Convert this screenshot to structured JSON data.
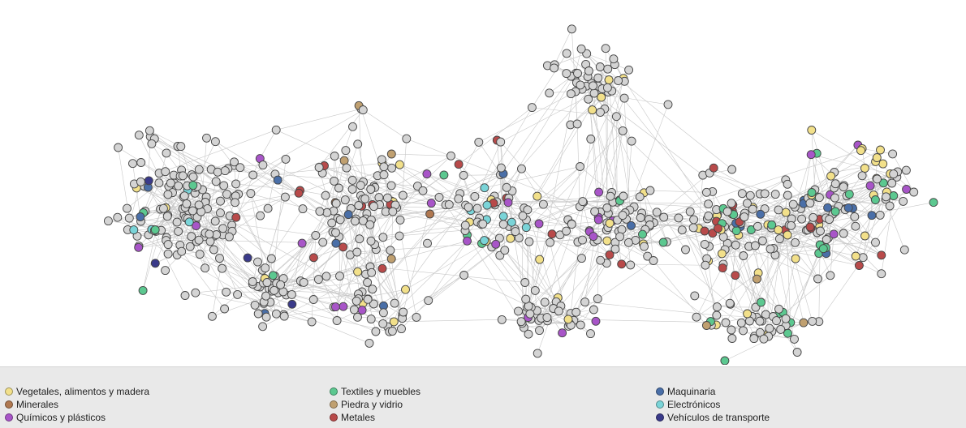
{
  "legend": {
    "items": [
      {
        "label": "Vegetales, alimentos y madera",
        "color": "#f2e08a"
      },
      {
        "label": "Minerales",
        "color": "#b07850"
      },
      {
        "label": "Químicos y plásticos",
        "color": "#a855c8"
      },
      {
        "label": "Textiles y muebles",
        "color": "#5cc890"
      },
      {
        "label": "Piedra y vidrio",
        "color": "#c0a070"
      },
      {
        "label": "Metales",
        "color": "#b84a4a"
      },
      {
        "label": "Maquinaria",
        "color": "#4a6fa8"
      },
      {
        "label": "Electrónicos",
        "color": "#7ad4d8"
      },
      {
        "label": "Vehículos de transporte",
        "color": "#3a3a8a"
      }
    ]
  },
  "network": {
    "unclassified_color": "#d4d4d4",
    "edge_color": "#c8c8c8"
  }
}
